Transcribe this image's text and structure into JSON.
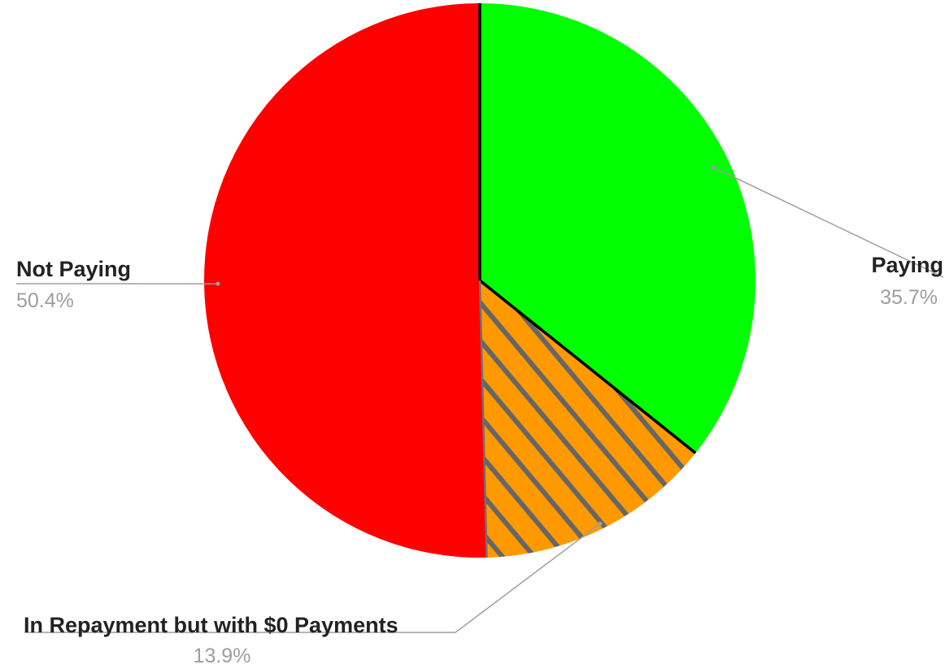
{
  "chart_data": {
    "type": "pie",
    "slices": [
      {
        "label": "Paying",
        "value": 35.7,
        "display": "35.7%",
        "color": "#00ff00",
        "pattern": "none"
      },
      {
        "label": "In Repayment but with $0 Payments",
        "value": 13.9,
        "display": "13.9%",
        "color": "#ff9900",
        "pattern": "diagonal-hatch",
        "hatch_color": "#666666"
      },
      {
        "label": "Not Paying",
        "value": 50.4,
        "display": "50.4%",
        "color": "#ff0000",
        "pattern": "none"
      }
    ],
    "start_angle": "12 o'clock",
    "direction": "clockwise",
    "legend": "none",
    "labels": "outside-with-leader-lines"
  }
}
